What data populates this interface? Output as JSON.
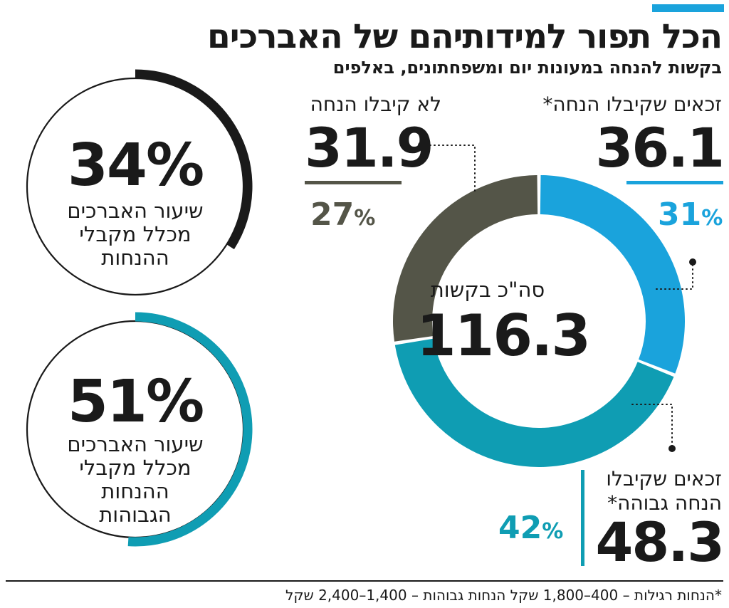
{
  "header": {
    "title": "הכל תפור למידותיהם של האברכים",
    "subtitle": "בקשות להנחה במעונות יום ומשפחתונים, באלפים"
  },
  "colors": {
    "accent": "#1aa3dc",
    "eligible": "#1aa3dc",
    "high": "#0f9db3",
    "rejected": "#545548",
    "dark": "#1a1a1a"
  },
  "chart_data": [
    {
      "type": "pie",
      "title": "סה\"כ בקשות",
      "total": "116.3",
      "unit": "אלפים",
      "slices": [
        {
          "name": "זכאים שקיבלו הנחה*",
          "value": 36.1,
          "value_label": "36.1",
          "percent_label": "31",
          "color": "#1aa3dc"
        },
        {
          "name": "זכאים שקיבלו הנחה גבוהה*",
          "value": 48.3,
          "value_label": "48.3",
          "percent_label": "42",
          "color": "#0f9db3"
        },
        {
          "name": "לא קיבלו הנחה",
          "value": 31.9,
          "value_label": "31.9",
          "percent_label": "27",
          "color": "#545548"
        }
      ]
    },
    {
      "type": "pie",
      "title": "שיעור האברכים מכלל מקבלי ההנחות",
      "value": 34,
      "value_label": "34%",
      "label_lines": [
        "שיעור האברכים",
        "מכלל מקבלי",
        "ההנחות"
      ],
      "color": "#1a1a1a"
    },
    {
      "type": "pie",
      "title": "שיעור האברכים מכלל מקבלי ההנחות הגבוהות",
      "value": 51,
      "value_label": "51%",
      "label_lines": [
        "שיעור האברכים",
        "מכלל מקבלי",
        "ההנחות",
        "הגבוהות"
      ],
      "color": "#0f9db3"
    }
  ],
  "labels": {
    "eligible_line2": "",
    "high_line1": "זכאים שקיבלו",
    "high_line2": "הנחה גבוהה*",
    "percent_sign": "%"
  },
  "footnote": "*הנחות רגילות – 400–1,800 שקל  הנחות גבוהות – 1,400–2,400 שקל"
}
